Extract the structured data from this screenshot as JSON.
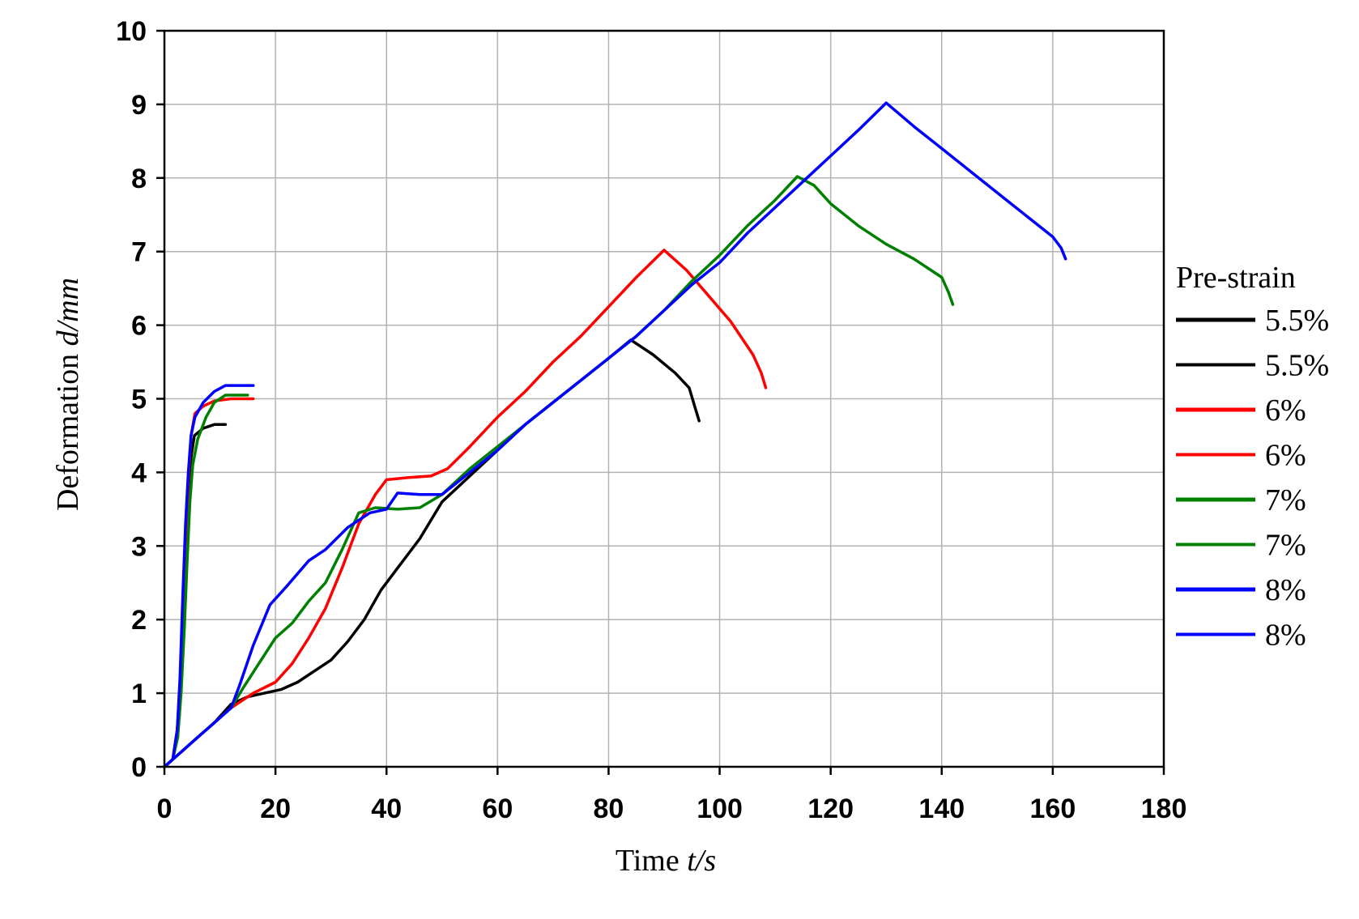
{
  "chart_data": {
    "type": "line",
    "xlabel": {
      "main": "Time ",
      "italic": "t/s"
    },
    "ylabel": {
      "main": "Deformation ",
      "italic": "d/mm"
    },
    "xlim": [
      0,
      180
    ],
    "ylim": [
      0,
      10
    ],
    "xticks": [
      "0",
      "20",
      "40",
      "60",
      "80",
      "100",
      "120",
      "140",
      "160",
      "180"
    ],
    "yticks": [
      "0",
      "1",
      "2",
      "3",
      "4",
      "5",
      "6",
      "7",
      "8",
      "9",
      "10"
    ],
    "grid": true,
    "legend_title": "Pre-strain",
    "legend_position": "right",
    "series": [
      {
        "name": "5.5%",
        "color": "#000000",
        "points": [
          [
            0,
            0
          ],
          [
            1.5,
            0.1
          ],
          [
            2,
            0.3
          ],
          [
            2.7,
            0.7
          ],
          [
            3.2,
            1.5
          ],
          [
            3.8,
            2.5
          ],
          [
            4.3,
            3.5
          ],
          [
            4.8,
            4.2
          ],
          [
            5.4,
            4.5
          ],
          [
            7,
            4.6
          ],
          [
            9,
            4.65
          ],
          [
            11,
            4.65
          ]
        ]
      },
      {
        "name": "5.5%",
        "color": "#000000",
        "points": [
          [
            0,
            0
          ],
          [
            3,
            0.2
          ],
          [
            6,
            0.4
          ],
          [
            9,
            0.6
          ],
          [
            12,
            0.85
          ],
          [
            15,
            0.95
          ],
          [
            18,
            1.0
          ],
          [
            21,
            1.05
          ],
          [
            24,
            1.15
          ],
          [
            27,
            1.3
          ],
          [
            30,
            1.45
          ],
          [
            33,
            1.7
          ],
          [
            36,
            2.0
          ],
          [
            39,
            2.4
          ],
          [
            42,
            2.7
          ],
          [
            46,
            3.1
          ],
          [
            50,
            3.6
          ],
          [
            55,
            3.95
          ],
          [
            60,
            4.3
          ],
          [
            65,
            4.65
          ],
          [
            70,
            4.95
          ],
          [
            75,
            5.25
          ],
          [
            80,
            5.55
          ],
          [
            84,
            5.8
          ],
          [
            88,
            5.6
          ],
          [
            92,
            5.35
          ],
          [
            94.5,
            5.15
          ],
          [
            95.5,
            4.9
          ],
          [
            96.3,
            4.7
          ]
        ]
      },
      {
        "name": "6%",
        "color": "#ff0000",
        "points": [
          [
            0,
            0
          ],
          [
            1.5,
            0.1
          ],
          [
            2.3,
            0.5
          ],
          [
            2.9,
            1.2
          ],
          [
            3.4,
            2.4
          ],
          [
            3.9,
            3.2
          ],
          [
            4.3,
            3.9
          ],
          [
            4.8,
            4.5
          ],
          [
            5.5,
            4.8
          ],
          [
            7,
            4.9
          ],
          [
            9,
            4.97
          ],
          [
            12,
            5.0
          ],
          [
            16,
            5.0
          ]
        ]
      },
      {
        "name": "6%",
        "color": "#ff0000",
        "points": [
          [
            0,
            0
          ],
          [
            3,
            0.2
          ],
          [
            6,
            0.4
          ],
          [
            9,
            0.6
          ],
          [
            12,
            0.8
          ],
          [
            16,
            1.0
          ],
          [
            20,
            1.15
          ],
          [
            23,
            1.4
          ],
          [
            26,
            1.75
          ],
          [
            29,
            2.15
          ],
          [
            32,
            2.7
          ],
          [
            35,
            3.3
          ],
          [
            38,
            3.7
          ],
          [
            40,
            3.9
          ],
          [
            44,
            3.93
          ],
          [
            48,
            3.95
          ],
          [
            51,
            4.05
          ],
          [
            55,
            4.35
          ],
          [
            60,
            4.75
          ],
          [
            65,
            5.1
          ],
          [
            70,
            5.5
          ],
          [
            75,
            5.85
          ],
          [
            80,
            6.25
          ],
          [
            85,
            6.65
          ],
          [
            90,
            7.02
          ],
          [
            94,
            6.75
          ],
          [
            98,
            6.4
          ],
          [
            102,
            6.05
          ],
          [
            106,
            5.6
          ],
          [
            107.5,
            5.35
          ],
          [
            108.3,
            5.15
          ]
        ]
      },
      {
        "name": "7%",
        "color": "#008000",
        "points": [
          [
            0,
            0
          ],
          [
            1.5,
            0.1
          ],
          [
            2.4,
            0.4
          ],
          [
            3.0,
            1.0
          ],
          [
            3.6,
            1.9
          ],
          [
            4.1,
            2.8
          ],
          [
            4.6,
            3.6
          ],
          [
            5.1,
            4.1
          ],
          [
            6,
            4.45
          ],
          [
            7.5,
            4.75
          ],
          [
            9,
            4.95
          ],
          [
            11,
            5.05
          ],
          [
            15,
            5.05
          ]
        ]
      },
      {
        "name": "7%",
        "color": "#008000",
        "points": [
          [
            0,
            0
          ],
          [
            3,
            0.2
          ],
          [
            6,
            0.4
          ],
          [
            9,
            0.6
          ],
          [
            12,
            0.8
          ],
          [
            14,
            1.05
          ],
          [
            17,
            1.4
          ],
          [
            20,
            1.75
          ],
          [
            23,
            1.95
          ],
          [
            26,
            2.25
          ],
          [
            29,
            2.5
          ],
          [
            32,
            2.95
          ],
          [
            35,
            3.45
          ],
          [
            38,
            3.52
          ],
          [
            42,
            3.5
          ],
          [
            46,
            3.52
          ],
          [
            50,
            3.7
          ],
          [
            55,
            4.05
          ],
          [
            60,
            4.35
          ],
          [
            65,
            4.65
          ],
          [
            70,
            4.95
          ],
          [
            75,
            5.25
          ],
          [
            80,
            5.55
          ],
          [
            85,
            5.85
          ],
          [
            90,
            6.2
          ],
          [
            95,
            6.6
          ],
          [
            100,
            6.95
          ],
          [
            105,
            7.35
          ],
          [
            110,
            7.7
          ],
          [
            114,
            8.02
          ],
          [
            117,
            7.9
          ],
          [
            120,
            7.65
          ],
          [
            125,
            7.35
          ],
          [
            130,
            7.1
          ],
          [
            135,
            6.9
          ],
          [
            140,
            6.65
          ],
          [
            141.2,
            6.45
          ],
          [
            142,
            6.28
          ]
        ]
      },
      {
        "name": "8%",
        "color": "#0000ff",
        "points": [
          [
            0,
            0
          ],
          [
            1.5,
            0.1
          ],
          [
            2.3,
            0.5
          ],
          [
            2.8,
            1.2
          ],
          [
            3.3,
            2.3
          ],
          [
            3.8,
            3.3
          ],
          [
            4.3,
            4.0
          ],
          [
            4.8,
            4.5
          ],
          [
            5.5,
            4.75
          ],
          [
            7,
            4.95
          ],
          [
            9,
            5.1
          ],
          [
            11,
            5.18
          ],
          [
            16,
            5.18
          ]
        ]
      },
      {
        "name": "8%",
        "color": "#0000ff",
        "points": [
          [
            0,
            0
          ],
          [
            3,
            0.2
          ],
          [
            6,
            0.4
          ],
          [
            9,
            0.6
          ],
          [
            12,
            0.8
          ],
          [
            13.5,
            1.1
          ],
          [
            16,
            1.65
          ],
          [
            19,
            2.2
          ],
          [
            22,
            2.45
          ],
          [
            26,
            2.8
          ],
          [
            29,
            2.95
          ],
          [
            33,
            3.25
          ],
          [
            37,
            3.45
          ],
          [
            40,
            3.5
          ],
          [
            42,
            3.72
          ],
          [
            46,
            3.7
          ],
          [
            50,
            3.7
          ],
          [
            55,
            4.0
          ],
          [
            60,
            4.3
          ],
          [
            65,
            4.65
          ],
          [
            70,
            4.95
          ],
          [
            75,
            5.25
          ],
          [
            80,
            5.55
          ],
          [
            85,
            5.85
          ],
          [
            90,
            6.2
          ],
          [
            95,
            6.55
          ],
          [
            100,
            6.85
          ],
          [
            105,
            7.25
          ],
          [
            110,
            7.6
          ],
          [
            115,
            7.95
          ],
          [
            120,
            8.3
          ],
          [
            125,
            8.65
          ],
          [
            130,
            9.02
          ],
          [
            135,
            8.7
          ],
          [
            140,
            8.4
          ],
          [
            145,
            8.1
          ],
          [
            150,
            7.8
          ],
          [
            155,
            7.5
          ],
          [
            160,
            7.2
          ],
          [
            161.5,
            7.05
          ],
          [
            162.3,
            6.9
          ]
        ]
      }
    ]
  }
}
